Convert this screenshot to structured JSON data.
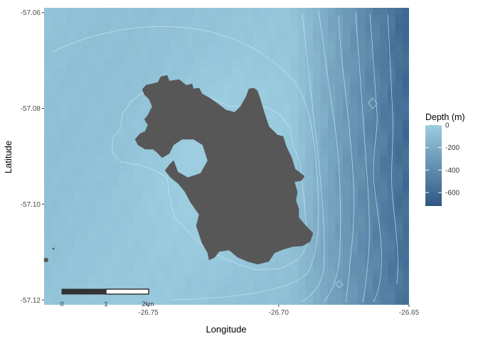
{
  "chart_data": {
    "type": "map",
    "xlabel": "Longitude",
    "ylabel": "Latitude",
    "xlim": [
      -26.79,
      -26.65
    ],
    "ylim": [
      -57.121,
      -57.059
    ],
    "x_ticks": [
      {
        "value": -26.75,
        "label": "-26.75"
      },
      {
        "value": -26.7,
        "label": "-26.70"
      },
      {
        "value": -26.65,
        "label": "-26.65"
      }
    ],
    "y_ticks": [
      {
        "value": -57.06,
        "label": "-57.06"
      },
      {
        "value": -57.08,
        "label": "-57.08"
      },
      {
        "value": -57.1,
        "label": "-57.10"
      },
      {
        "value": -57.12,
        "label": "-57.12"
      }
    ],
    "grid": false,
    "fill": {
      "variable": "Depth (m)",
      "range": [
        -720,
        0
      ],
      "color_shallow": "#9ccde0",
      "color_deep": "#2f5683"
    },
    "land_color": "#575757",
    "contour_color": "#d4e9f2",
    "legend": {
      "title": "Depth (m)",
      "placement": "right",
      "breaks": [
        {
          "value": 0,
          "label": "0"
        },
        {
          "value": -200,
          "label": "-200"
        },
        {
          "value": -400,
          "label": "-400"
        },
        {
          "value": -600,
          "label": "-600"
        }
      ]
    },
    "scale_bar": {
      "labels": [
        "0",
        "1",
        "2km"
      ],
      "placement": "bottom-left"
    }
  }
}
